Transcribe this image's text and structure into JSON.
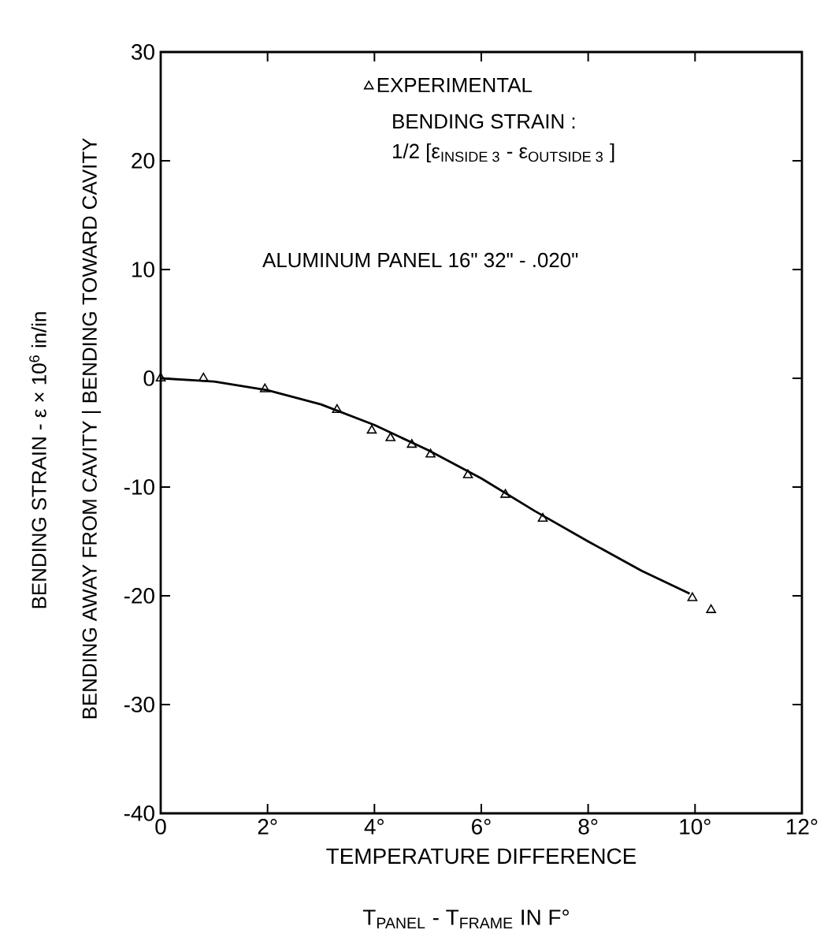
{
  "chart_data": {
    "type": "scatter",
    "xlabel": "TEMPERATURE DIFFERENCE",
    "ylabel": "BENDING STRAIN - ε × 10$^{6}$ in/in",
    "annotations": [
      "BENDING STRAIN :",
      "1/2 [ε$_{INSIDE 3}$ - ε$_{OUTSIDE 3}$ ]",
      "ALUMINUM PANEL 16\" 32\" - .020\"",
      "T$_{PANEL}$ - T$_{FRAME}$ IN F°",
      "BENDING AWAY FROM CAVITY | BENDING TOWARD CAVITY"
    ],
    "series": [
      {
        "name": "EXPERIMENTAL",
        "color": "#000000",
        "marker": "triangle",
        "x": [
          0,
          0.8,
          1.95,
          3.3,
          3.95,
          4.3,
          4.7,
          5.05,
          5.75,
          6.45,
          7.15,
          9.95,
          10.3
        ],
        "values": [
          0,
          0,
          -1.0,
          -2.9,
          -4.8,
          -5.5,
          -6.1,
          -7.0,
          -8.9,
          -10.7,
          -12.9,
          -20.2,
          -21.3
        ]
      },
      {
        "type": "line",
        "color": "#000000",
        "marker": "none",
        "line_style": "solid",
        "x": [
          0,
          1,
          2,
          3,
          4,
          5,
          6,
          7,
          8,
          9,
          9.9
        ],
        "values": [
          0,
          -0.3,
          -1.1,
          -2.4,
          -4.3,
          -6.6,
          -9.2,
          -12.2,
          -15.0,
          -17.7,
          -19.8
        ]
      }
    ],
    "xlim": [
      0,
      12
    ],
    "ylim": [
      -40,
      30
    ],
    "xticks": [
      0,
      {
        "value": 2,
        "label": "2°"
      },
      {
        "value": 4,
        "label": "4°"
      },
      {
        "value": 6,
        "label": "6°"
      },
      {
        "value": 8,
        "label": "8°"
      },
      {
        "value": 10,
        "label": "10°"
      },
      {
        "value": 12,
        "label": "12°"
      }
    ],
    "yticks": [
      -40,
      -30,
      -20,
      -10,
      0,
      10,
      20,
      30
    ],
    "grid": false,
    "legend": "top"
  }
}
